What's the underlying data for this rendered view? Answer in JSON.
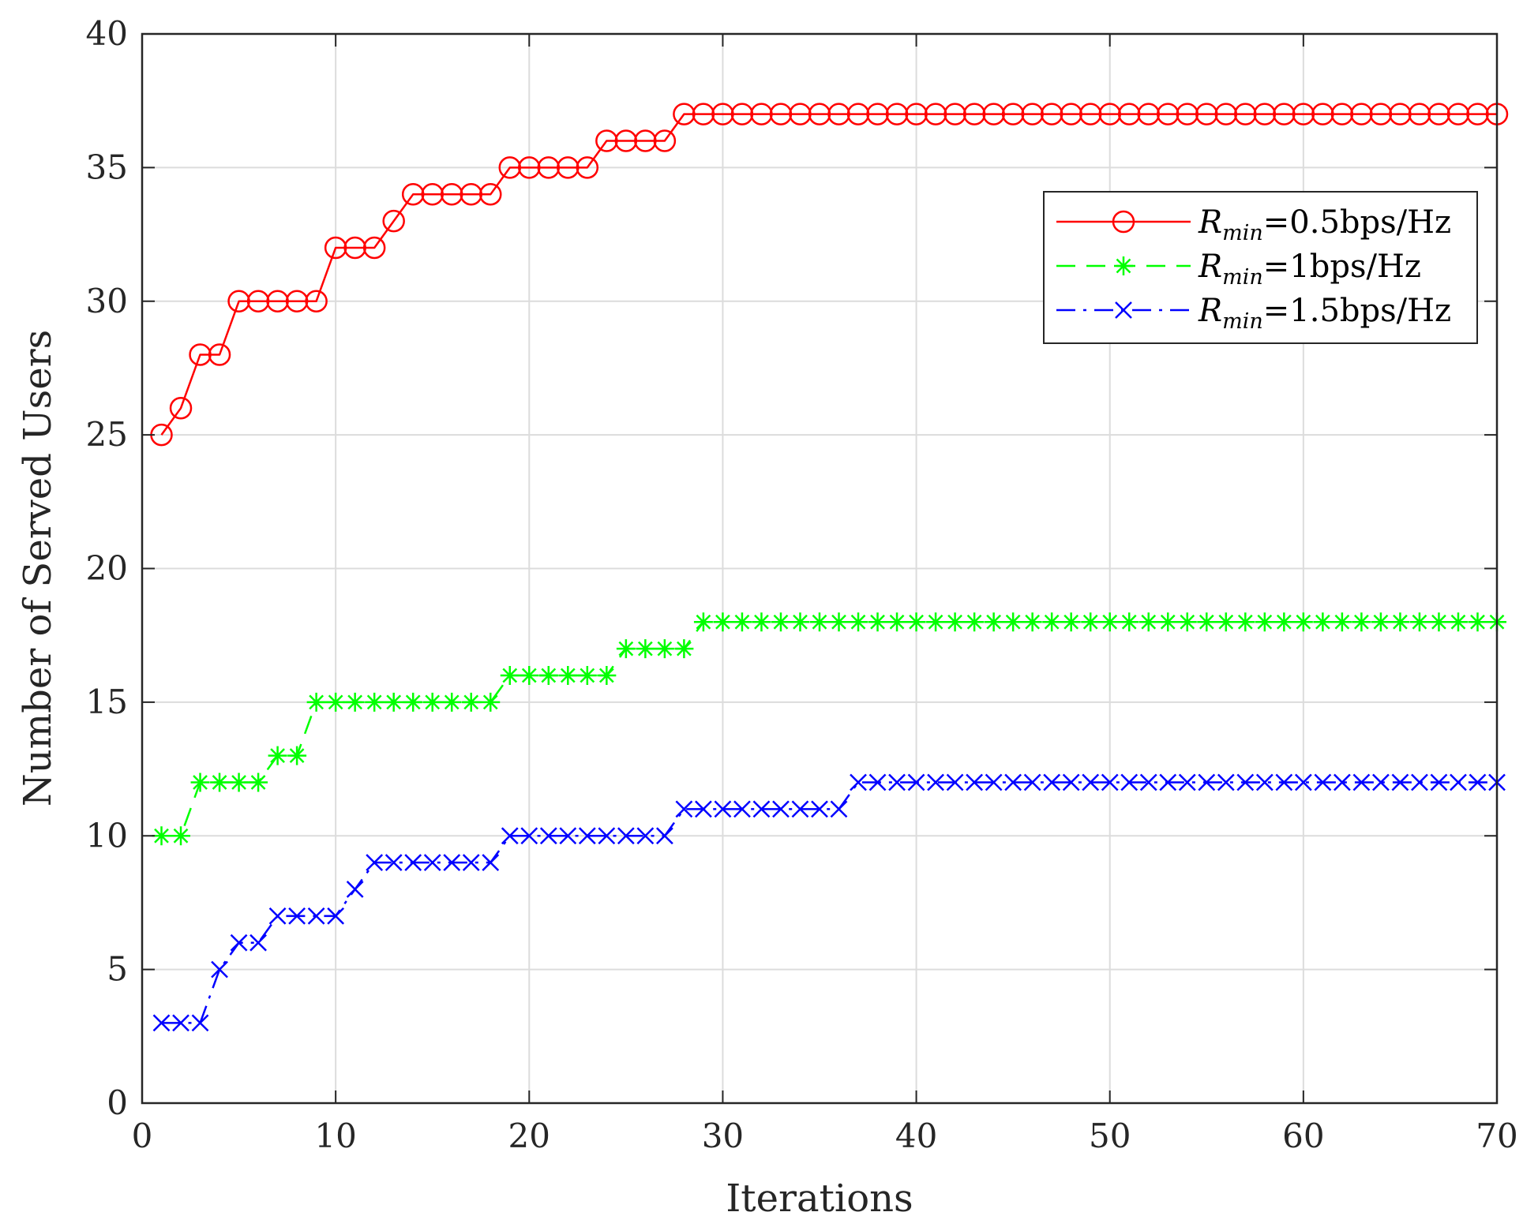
{
  "chart_data": {
    "type": "line",
    "title": "",
    "xlabel": "Iterations",
    "ylabel": "Number of Served Users",
    "xlim": [
      0,
      70
    ],
    "ylim": [
      0,
      40
    ],
    "xticks": [
      0,
      10,
      20,
      30,
      40,
      50,
      60,
      70
    ],
    "yticks": [
      0,
      5,
      10,
      15,
      20,
      25,
      30,
      35,
      40
    ],
    "grid": true,
    "legend_position": "upper-right",
    "series": [
      {
        "name": "R_min=0.5bps/Hz",
        "legend_symbol": "R",
        "legend_subscript": "min",
        "legend_suffix": "=0.5bps/Hz",
        "color": "#ff0000",
        "line_style": "solid",
        "marker": "circle",
        "values": [
          25,
          26,
          28,
          28,
          30,
          30,
          30,
          30,
          30,
          32,
          32,
          32,
          33,
          34,
          34,
          34,
          34,
          34,
          35,
          35,
          35,
          35,
          35,
          36,
          36,
          36,
          36,
          37,
          37,
          37,
          37,
          37,
          37,
          37,
          37,
          37,
          37,
          37,
          37,
          37,
          37,
          37,
          37,
          37,
          37,
          37,
          37,
          37,
          37,
          37,
          37,
          37,
          37,
          37,
          37,
          37,
          37,
          37,
          37,
          37,
          37,
          37,
          37,
          37,
          37,
          37,
          37,
          37,
          37,
          37
        ]
      },
      {
        "name": "R_min=1bps/Hz",
        "legend_symbol": "R",
        "legend_subscript": "min",
        "legend_suffix": "=1bps/Hz",
        "color": "#00ff00",
        "line_style": "dashed",
        "marker": "asterisk",
        "values": [
          10,
          10,
          12,
          12,
          12,
          12,
          13,
          13,
          15,
          15,
          15,
          15,
          15,
          15,
          15,
          15,
          15,
          15,
          16,
          16,
          16,
          16,
          16,
          16,
          17,
          17,
          17,
          17,
          18,
          18,
          18,
          18,
          18,
          18,
          18,
          18,
          18,
          18,
          18,
          18,
          18,
          18,
          18,
          18,
          18,
          18,
          18,
          18,
          18,
          18,
          18,
          18,
          18,
          18,
          18,
          18,
          18,
          18,
          18,
          18,
          18,
          18,
          18,
          18,
          18,
          18,
          18,
          18,
          18,
          18
        ]
      },
      {
        "name": "R_min=1.5bps/Hz",
        "legend_symbol": "R",
        "legend_subscript": "min",
        "legend_suffix": "=1.5bps/Hz",
        "color": "#0000ff",
        "line_style": "dash-dot",
        "marker": "x",
        "values": [
          3,
          3,
          3,
          5,
          6,
          6,
          7,
          7,
          7,
          7,
          8,
          9,
          9,
          9,
          9,
          9,
          9,
          9,
          10,
          10,
          10,
          10,
          10,
          10,
          10,
          10,
          10,
          11,
          11,
          11,
          11,
          11,
          11,
          11,
          11,
          11,
          12,
          12,
          12,
          12,
          12,
          12,
          12,
          12,
          12,
          12,
          12,
          12,
          12,
          12,
          12,
          12,
          12,
          12,
          12,
          12,
          12,
          12,
          12,
          12,
          12,
          12,
          12,
          12,
          12,
          12,
          12,
          12,
          12,
          12
        ]
      }
    ]
  }
}
